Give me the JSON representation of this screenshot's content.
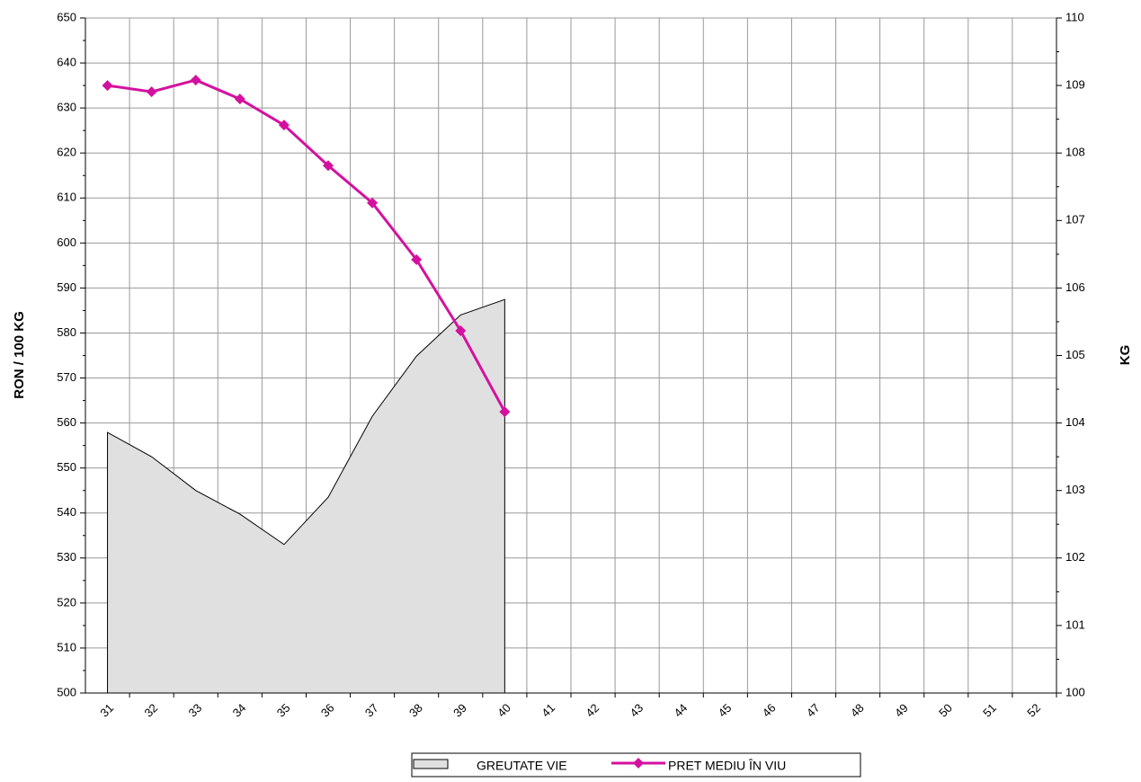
{
  "chart_data": {
    "type": "line",
    "y_label": "RON / 100 KG",
    "y2_label": "KG",
    "categories": [
      "31",
      "32",
      "33",
      "34",
      "35",
      "36",
      "37",
      "38",
      "39",
      "40",
      "41",
      "42",
      "43",
      "44",
      "45",
      "46",
      "47",
      "48",
      "49",
      "50",
      "51",
      "52"
    ],
    "ylim": [
      500,
      650
    ],
    "yticks": [
      500,
      510,
      520,
      530,
      540,
      550,
      560,
      570,
      580,
      590,
      600,
      610,
      620,
      630,
      640,
      650
    ],
    "y2lim": [
      100,
      110
    ],
    "y2ticks": [
      100,
      101,
      102,
      103,
      104,
      105,
      106,
      107,
      108,
      109,
      110
    ],
    "grid": true,
    "series": [
      {
        "name": "GREUTATE  VIE",
        "type": "area",
        "axis": "y2",
        "color": "#e0e0e0",
        "values": [
          103.86,
          103.5,
          103.0,
          102.65,
          102.2,
          102.9,
          104.1,
          104.99,
          105.6,
          105.83,
          null,
          null,
          null,
          null,
          null,
          null,
          null,
          null,
          null,
          null,
          null,
          null
        ]
      },
      {
        "name": "PRET MEDIU ÎN VIU",
        "type": "line",
        "color": "#d4119f",
        "values": [
          635,
          633.6,
          636.2,
          632,
          626.2,
          617.2,
          608.9,
          596.3,
          580.5,
          562.5,
          null,
          null,
          null,
          null,
          null,
          null,
          null,
          null,
          null,
          null,
          null,
          null
        ]
      }
    ]
  }
}
